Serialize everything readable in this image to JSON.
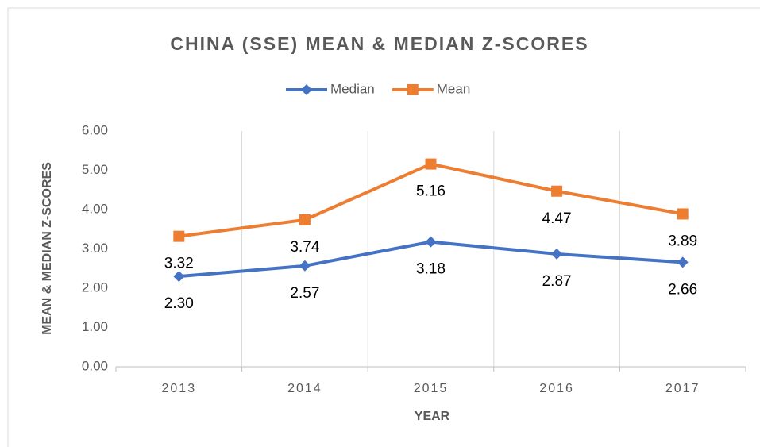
{
  "chart_data": {
    "type": "line",
    "title": "CHINA (SSE) MEAN & MEDIAN Z-SCORES",
    "x_label": "YEAR",
    "y_label": "MEAN & MEDIAN Z-SCORES",
    "categories": [
      "2013",
      "2014",
      "2015",
      "2016",
      "2017"
    ],
    "series": [
      {
        "name": "Median",
        "color": "#4472c4",
        "marker": "diamond",
        "values": [
          2.3,
          2.57,
          3.18,
          2.87,
          2.66
        ],
        "value_labels": [
          "2.30",
          "2.57",
          "3.18",
          "2.87",
          "2.66"
        ]
      },
      {
        "name": "Mean",
        "color": "#ed7d31",
        "marker": "square",
        "values": [
          3.32,
          3.74,
          5.16,
          4.47,
          3.89
        ],
        "value_labels": [
          "3.32",
          "3.74",
          "5.16",
          "4.47",
          "3.89"
        ]
      }
    ],
    "ylim": [
      0,
      6
    ],
    "yticks": [
      {
        "value": 0,
        "label": "0.00"
      },
      {
        "value": 1,
        "label": "1.00"
      },
      {
        "value": 2,
        "label": "2.00"
      },
      {
        "value": 3,
        "label": "3.00"
      },
      {
        "value": 4,
        "label": "4.00"
      },
      {
        "value": 5,
        "label": "5.00"
      },
      {
        "value": 6,
        "label": "6.00"
      }
    ],
    "legend": "top"
  }
}
